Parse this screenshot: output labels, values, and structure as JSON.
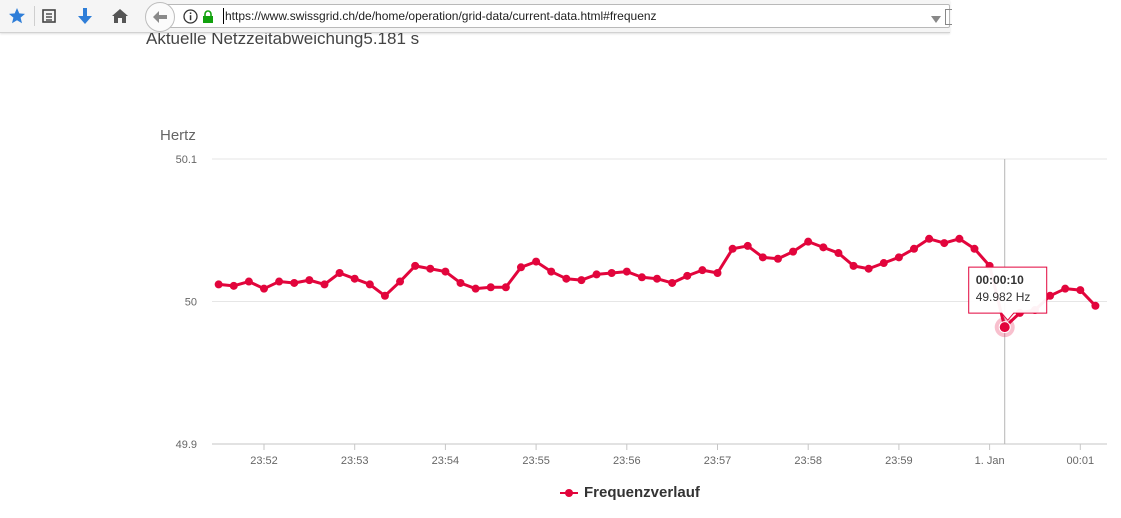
{
  "browser": {
    "url": "https://www.swissgrid.ch/de/home/operation/grid-data/current-data.html#frequenz",
    "icons": [
      "bookmark-star-icon",
      "reading-list-icon",
      "download-arrow-icon",
      "home-icon",
      "back-arrow-icon",
      "info-icon",
      "lock-icon",
      "dropdown-triangle-icon"
    ]
  },
  "page": {
    "heading_label": "Aktuelle Netzzeitabweichung",
    "heading_value": "5.181 s"
  },
  "colors": {
    "series": "#e2053c",
    "grid": "#e6e6e6",
    "axis_text": "#666666"
  },
  "chart_data": {
    "type": "line",
    "ylabel": "Hertz",
    "xlabel": "",
    "ylim": [
      49.9,
      50.1
    ],
    "yticks": [
      "50.1",
      "50",
      "49.9"
    ],
    "xticks": [
      "23:52",
      "23:53",
      "23:54",
      "23:55",
      "23:56",
      "23:57",
      "23:58",
      "23:59",
      "1. Jan",
      "00:01"
    ],
    "grid": true,
    "legend": "bottom-center",
    "series": [
      {
        "name": "Frequenzverlauf",
        "x": [
          "23:51:30",
          "23:51:40",
          "23:51:50",
          "23:52:00",
          "23:52:10",
          "23:52:20",
          "23:52:30",
          "23:52:40",
          "23:52:50",
          "23:53:00",
          "23:53:10",
          "23:53:20",
          "23:53:30",
          "23:53:40",
          "23:53:50",
          "23:54:00",
          "23:54:10",
          "23:54:20",
          "23:54:30",
          "23:54:40",
          "23:54:50",
          "23:55:00",
          "23:55:10",
          "23:55:20",
          "23:55:30",
          "23:55:40",
          "23:55:50",
          "23:56:00",
          "23:56:10",
          "23:56:20",
          "23:56:30",
          "23:56:40",
          "23:56:50",
          "23:57:00",
          "23:57:10",
          "23:57:20",
          "23:57:30",
          "23:57:40",
          "23:57:50",
          "23:58:00",
          "23:58:10",
          "23:58:20",
          "23:58:30",
          "23:58:40",
          "23:58:50",
          "23:59:00",
          "23:59:10",
          "23:59:20",
          "23:59:30",
          "23:59:40",
          "23:59:50",
          "00:00:00",
          "00:00:10",
          "00:00:20",
          "00:00:30",
          "00:00:40",
          "00:00:50",
          "00:01:00",
          "00:01:10"
        ],
        "values": [
          50.012,
          50.011,
          50.014,
          50.009,
          50.014,
          50.013,
          50.015,
          50.012,
          50.02,
          50.016,
          50.012,
          50.004,
          50.014,
          50.025,
          50.023,
          50.021,
          50.013,
          50.009,
          50.01,
          50.01,
          50.024,
          50.028,
          50.021,
          50.016,
          50.015,
          50.019,
          50.02,
          50.021,
          50.017,
          50.016,
          50.013,
          50.018,
          50.022,
          50.02,
          50.037,
          50.039,
          50.031,
          50.03,
          50.035,
          50.042,
          50.038,
          50.034,
          50.025,
          50.023,
          50.027,
          50.031,
          50.037,
          50.044,
          50.041,
          50.044,
          50.037,
          50.025,
          49.982,
          49.992,
          49.994,
          50.004,
          50.009,
          50.008,
          49.997
        ]
      }
    ],
    "tooltip": {
      "time": "00:00:10",
      "value": "49.982 Hz"
    }
  }
}
